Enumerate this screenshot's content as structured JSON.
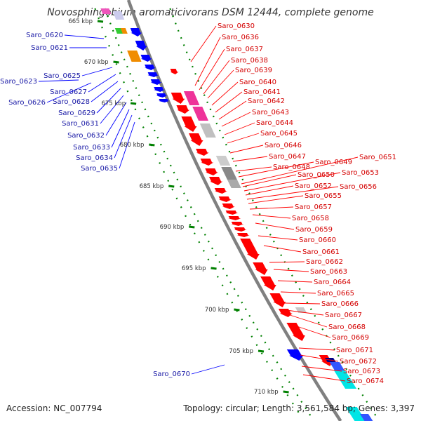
{
  "title": "Novosphingobium aromaticivorans DSM 12444, complete genome",
  "footer": {
    "accession": "Accession: NC_007794",
    "topology": "Topology: circular; Length: 3,561,584 bp; Genes: 3,397"
  },
  "colors": {
    "forward_strand": "#ff0000",
    "reverse_strand": "#0000ff",
    "blue_label": "#1a1aa6",
    "red_label": "#d40000",
    "backbone": "#808080",
    "kbp_ticks": "#008000"
  },
  "kbp_ticks": [
    "665 kbp",
    "670 kbp",
    "675 kbp",
    "680 kbp",
    "685 kbp",
    "690 kbp",
    "695 kbp",
    "700 kbp",
    "705 kbp",
    "710 kbp"
  ],
  "blue_labels": [
    "Saro_0620",
    "Saro_0621",
    "Saro_0625",
    "Saro_0623",
    "Saro_0627",
    "Saro_0626",
    "Saro_0628",
    "Saro_0629",
    "Saro_0631",
    "Saro_0632",
    "Saro_0633",
    "Saro_0634",
    "Saro_0635",
    "Saro_0670"
  ],
  "red_labels": [
    "Saro_0630",
    "Saro_0636",
    "Saro_0637",
    "Saro_0638",
    "Saro_0639",
    "Saro_0640",
    "Saro_0641",
    "Saro_0642",
    "Saro_0643",
    "Saro_0644",
    "Saro_0645",
    "Saro_0646",
    "Saro_0647",
    "Saro_0648",
    "Saro_0649",
    "Saro_0651",
    "Saro_0650",
    "Saro_0653",
    "Saro_0652",
    "Saro_0656",
    "Saro_0655",
    "Saro_0657",
    "Saro_0658",
    "Saro_0659",
    "Saro_0660",
    "Saro_0661",
    "Saro_0662",
    "Saro_0663",
    "Saro_0664",
    "Saro_0665",
    "Saro_0666",
    "Saro_0667",
    "Saro_0668",
    "Saro_0669",
    "Saro_0671",
    "Saro_0672",
    "Saro_0673",
    "Saro_0674"
  ]
}
